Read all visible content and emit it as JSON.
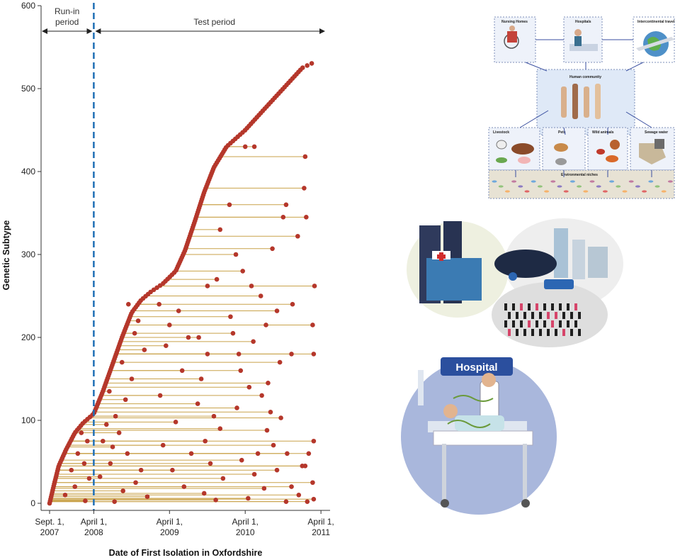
{
  "chart_data": {
    "type": "scatter",
    "title": "",
    "xlabel": "Date of First Isolation in Oxfordshire",
    "ylabel": "Genetic Subtype",
    "x_ticks": [
      {
        "date": "2007-09-01",
        "label_lines": [
          "Sept. 1,",
          "2007"
        ]
      },
      {
        "date": "2008-04-01",
        "label_lines": [
          "April 1,",
          "2008"
        ]
      },
      {
        "date": "2009-04-01",
        "label_lines": [
          "April 1,",
          "2009"
        ]
      },
      {
        "date": "2010-04-01",
        "label_lines": [
          "April 1,",
          "2010"
        ]
      },
      {
        "date": "2011-04-01",
        "label_lines": [
          "April 1,",
          "2011"
        ]
      }
    ],
    "y_ticks": [
      0,
      100,
      200,
      300,
      400,
      500,
      600
    ],
    "ylim": [
      0,
      600
    ],
    "xlim": [
      "2007-09-01",
      "2011-04-01"
    ],
    "periods": [
      {
        "label_lines": [
          "Run-in",
          "period"
        ],
        "from": "2007-09-01",
        "to": "2008-04-01"
      },
      {
        "label_lines": [
          "Test period"
        ],
        "from": "2008-04-01",
        "to": "2011-04-01"
      }
    ],
    "divider_date": "2008-04-01",
    "series": [
      {
        "description": "first isolation of each subtype (cumulative curve)",
        "color": "#b5372b",
        "curve": [
          [
            "2007-09-01",
            0
          ],
          [
            "2007-09-20",
            20
          ],
          [
            "2007-10-15",
            45
          ],
          [
            "2007-11-20",
            65
          ],
          [
            "2008-01-01",
            85
          ],
          [
            "2008-02-10",
            97
          ],
          [
            "2008-04-01",
            108
          ],
          [
            "2008-05-15",
            135
          ],
          [
            "2008-07-01",
            168
          ],
          [
            "2008-08-15",
            200
          ],
          [
            "2008-10-01",
            230
          ],
          [
            "2008-11-15",
            245
          ],
          [
            "2009-01-01",
            255
          ],
          [
            "2009-03-01",
            265
          ],
          [
            "2009-05-01",
            280
          ],
          [
            "2009-06-15",
            305
          ],
          [
            "2009-08-01",
            340
          ],
          [
            "2009-09-15",
            375
          ],
          [
            "2009-11-01",
            405
          ],
          [
            "2010-01-01",
            430
          ],
          [
            "2010-04-01",
            450
          ],
          [
            "2010-07-01",
            475
          ],
          [
            "2010-10-01",
            500
          ],
          [
            "2011-01-01",
            525
          ],
          [
            "2011-03-01",
            532
          ]
        ]
      },
      {
        "description": "later isolations of the same subtype",
        "color": "#b5372b",
        "line_color": "#c9a24a",
        "points": [
          [
            "2010-04-01",
            430
          ],
          [
            "2010-05-15",
            430
          ],
          [
            "2011-01-15",
            418
          ],
          [
            "2011-01-20",
            345
          ],
          [
            "2010-10-01",
            345
          ],
          [
            "2010-10-15",
            360
          ],
          [
            "2011-01-10",
            380
          ],
          [
            "2010-12-10",
            322
          ],
          [
            "2010-08-10",
            307
          ],
          [
            "2011-03-01",
            262
          ],
          [
            "2010-05-01",
            262
          ],
          [
            "2009-10-01",
            262
          ],
          [
            "2010-11-15",
            240
          ],
          [
            "2010-09-01",
            232
          ],
          [
            "2011-02-20",
            215
          ],
          [
            "2010-07-10",
            215
          ],
          [
            "2010-11-10",
            180
          ],
          [
            "2011-02-25",
            180
          ],
          [
            "2010-03-01",
            180
          ],
          [
            "2009-10-01",
            180
          ],
          [
            "2009-08-20",
            200
          ],
          [
            "2010-02-01",
            205
          ],
          [
            "2010-09-15",
            170
          ],
          [
            "2010-07-20",
            145
          ],
          [
            "2010-04-20",
            140
          ],
          [
            "2010-08-01",
            110
          ],
          [
            "2010-09-20",
            103
          ],
          [
            "2011-02-25",
            75
          ],
          [
            "2011-02-01",
            60
          ],
          [
            "2010-10-20",
            60
          ],
          [
            "2010-06-01",
            60
          ],
          [
            "2011-01-15",
            45
          ],
          [
            "2011-01-01",
            45
          ],
          [
            "2010-09-01",
            40
          ],
          [
            "2011-02-20",
            25
          ],
          [
            "2010-11-10",
            20
          ],
          [
            "2011-02-25",
            5
          ],
          [
            "2010-12-15",
            10
          ],
          [
            "2011-01-25",
            2
          ],
          [
            "2009-02-10",
            240
          ],
          [
            "2009-05-15",
            232
          ],
          [
            "2009-04-01",
            215
          ],
          [
            "2009-07-01",
            200
          ],
          [
            "2009-03-15",
            190
          ],
          [
            "2009-06-01",
            160
          ],
          [
            "2009-09-01",
            150
          ],
          [
            "2009-02-15",
            130
          ],
          [
            "2009-08-15",
            120
          ],
          [
            "2009-11-01",
            105
          ],
          [
            "2009-05-01",
            98
          ],
          [
            "2009-12-01",
            90
          ],
          [
            "2009-09-20",
            75
          ],
          [
            "2009-03-01",
            70
          ],
          [
            "2009-07-15",
            60
          ],
          [
            "2009-10-15",
            48
          ],
          [
            "2009-04-15",
            40
          ],
          [
            "2009-12-15",
            30
          ],
          [
            "2009-06-10",
            20
          ],
          [
            "2009-09-15",
            12
          ],
          [
            "2009-11-10",
            4
          ],
          [
            "2008-09-15",
            240
          ],
          [
            "2008-11-01",
            220
          ],
          [
            "2008-10-15",
            205
          ],
          [
            "2008-12-01",
            185
          ],
          [
            "2008-08-15",
            170
          ],
          [
            "2008-10-01",
            150
          ],
          [
            "2008-06-15",
            135
          ],
          [
            "2008-09-01",
            125
          ],
          [
            "2008-07-15",
            105
          ],
          [
            "2008-06-01",
            95
          ],
          [
            "2008-08-01",
            85
          ],
          [
            "2008-05-15",
            75
          ],
          [
            "2008-07-01",
            68
          ],
          [
            "2008-09-10",
            60
          ],
          [
            "2008-06-20",
            48
          ],
          [
            "2008-11-15",
            40
          ],
          [
            "2008-05-01",
            32
          ],
          [
            "2008-10-20",
            25
          ],
          [
            "2008-08-20",
            15
          ],
          [
            "2008-12-15",
            8
          ],
          [
            "2008-07-10",
            2
          ],
          [
            "2008-02-01",
            85
          ],
          [
            "2008-03-01",
            75
          ],
          [
            "2008-01-15",
            60
          ],
          [
            "2008-02-15",
            48
          ],
          [
            "2007-12-15",
            40
          ],
          [
            "2008-03-10",
            30
          ],
          [
            "2008-01-01",
            20
          ],
          [
            "2007-11-15",
            10
          ],
          [
            "2008-02-20",
            3
          ],
          [
            "2010-01-15",
            360
          ],
          [
            "2009-12-01",
            330
          ],
          [
            "2010-02-15",
            300
          ],
          [
            "2010-03-20",
            280
          ],
          [
            "2009-11-15",
            270
          ],
          [
            "2010-06-15",
            250
          ],
          [
            "2010-01-20",
            225
          ],
          [
            "2010-05-10",
            195
          ],
          [
            "2010-03-10",
            160
          ],
          [
            "2010-06-20",
            130
          ],
          [
            "2010-02-20",
            115
          ],
          [
            "2010-07-15",
            88
          ],
          [
            "2010-08-15",
            70
          ],
          [
            "2010-03-15",
            52
          ],
          [
            "2010-05-15",
            35
          ],
          [
            "2010-07-01",
            18
          ],
          [
            "2010-04-15",
            6
          ],
          [
            "2010-10-15",
            2
          ]
        ]
      }
    ],
    "grid": false
  },
  "panels": [
    {
      "name": "transmission-reservoir-diagram",
      "labels": [
        "Nursing Homes",
        "Hospitals",
        "Intercontinental travel",
        "Human community",
        "Livestock",
        "Pets",
        "Wild animals",
        "Sewage water",
        "Environmental niches"
      ]
    },
    {
      "name": "community-hospital-illustration"
    },
    {
      "name": "hospital-illustration",
      "sign": "Hospital"
    }
  ]
}
